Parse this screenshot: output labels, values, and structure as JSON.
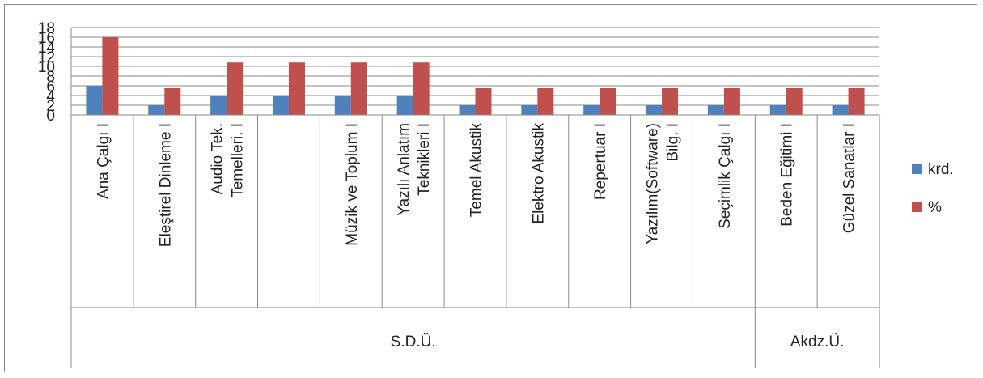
{
  "chart_data": {
    "type": "bar",
    "categories": [
      "Ana Çalgı I",
      "Eleştirel Dinleme I",
      "Audio Tek. Temelleri. I",
      "",
      "Müzik ve Toplum I",
      "Yazılı Anlatım Teknikleri I",
      "Temel Akustik",
      "Elektro Akustik",
      "Repertuar I",
      "Yazılım(Software) Bilg. I",
      "Seçimlik Çalgı I",
      "Beden Eğitimi I",
      "Güzel Sanatlar I"
    ],
    "category_lines": [
      [
        "Ana Çalgı I"
      ],
      [
        "Eleştirel Dinleme I"
      ],
      [
        "Audio Tek.",
        "Temelleri. I"
      ],
      [],
      [
        "Müzik ve Toplum I"
      ],
      [
        "Yazılı Anlatım",
        "Teknikleri I"
      ],
      [
        "Temel Akustik"
      ],
      [
        "Elektro Akustik"
      ],
      [
        "Repertuar I"
      ],
      [
        "Yazılım(Software)",
        "Bilg. I"
      ],
      [
        "Seçimlik Çalgı I"
      ],
      [
        "Beden Eğitimi I"
      ],
      [
        "Güzel Sanatlar I"
      ]
    ],
    "groups": [
      {
        "label": "S.D.Ü.",
        "count": 11
      },
      {
        "label": "Akdz.Ü.",
        "count": 2
      }
    ],
    "series": [
      {
        "name": "krd.",
        "color": "#4F81BD",
        "values": [
          6,
          2,
          4,
          4,
          4,
          4,
          2,
          2,
          2,
          2,
          2,
          2,
          2
        ]
      },
      {
        "name": "%",
        "color": "#C0504D",
        "values": [
          16,
          5.5,
          10.8,
          10.8,
          10.8,
          10.8,
          5.5,
          5.5,
          5.5,
          5.5,
          5.5,
          5.5,
          5.5
        ]
      }
    ],
    "yticks": [
      "0",
      "2",
      "4",
      "6",
      "8",
      "10",
      "12",
      "14",
      "16",
      "18"
    ],
    "ylim": [
      0,
      18
    ],
    "grid": true,
    "legend": "right"
  }
}
